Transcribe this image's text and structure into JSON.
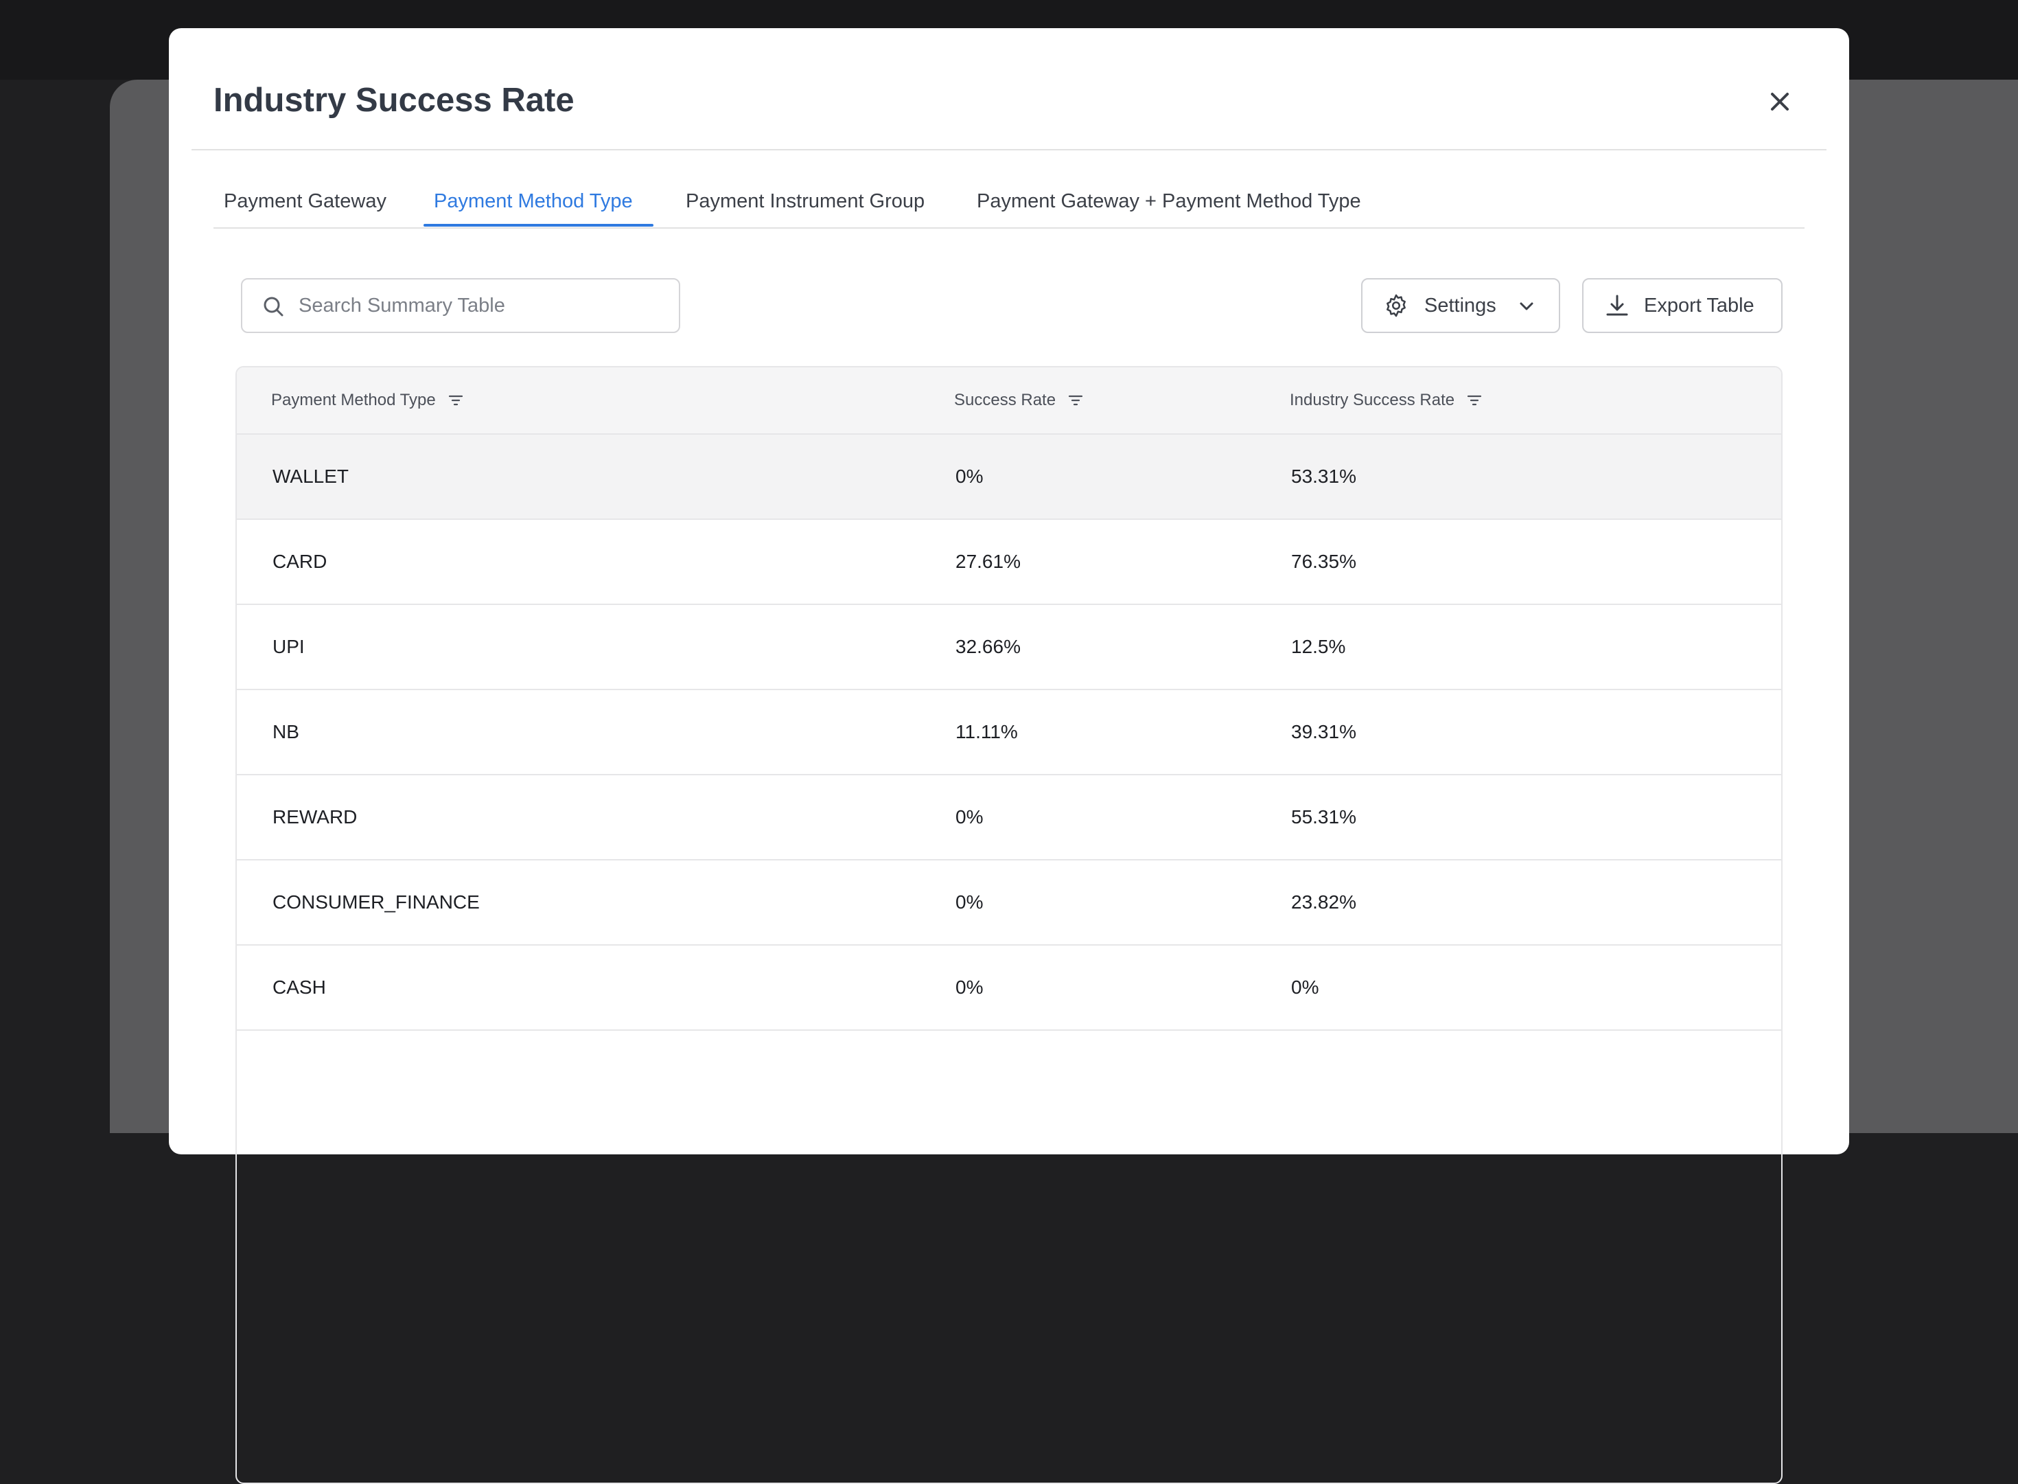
{
  "modal": {
    "title": "Industry Success Rate",
    "tabs": [
      "Payment Gateway",
      "Payment Method Type",
      "Payment Instrument Group",
      "Payment Gateway + Payment Method Type"
    ],
    "search_placeholder": "Search Summary Table",
    "buttons": {
      "settings": "Settings",
      "export": "Export Table"
    },
    "table": {
      "columns": [
        "Payment Method Type",
        "Success Rate",
        "Industry Success Rate"
      ],
      "rows": [
        [
          "WALLET",
          "0%",
          "53.31%"
        ],
        [
          "CARD",
          "27.61%",
          "76.35%"
        ],
        [
          "UPI",
          "32.66%",
          "12.5%"
        ],
        [
          "NB",
          "11.11%",
          "39.31%"
        ],
        [
          "REWARD",
          "0%",
          "55.31%"
        ],
        [
          "CONSUMER_FINANCE",
          "0%",
          "23.82%"
        ],
        [
          "CASH",
          "0%",
          "0%"
        ]
      ]
    }
  }
}
